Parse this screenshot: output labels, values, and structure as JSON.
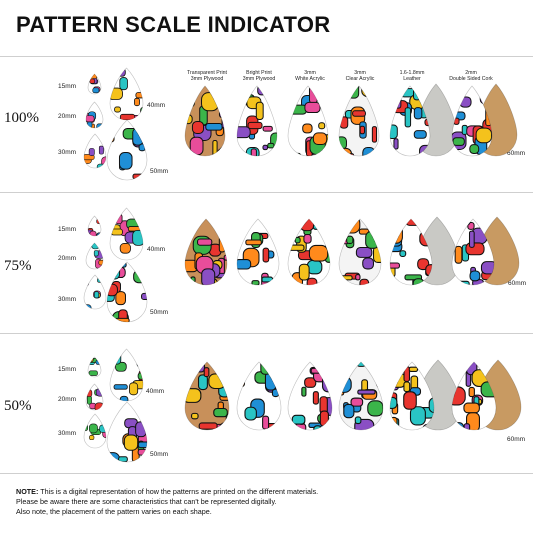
{
  "title": "PATTERN SCALE INDICATOR",
  "materials": [
    "Transparent Print\n3mm Plywood",
    "Bright Print\n3mm Plywood",
    "3mm\nWhite Acrylic",
    "3mm\nClear Acrylic",
    "1.6-1.8mm\nLeather",
    "2mm\nDouble Sided Cork"
  ],
  "sections": [
    {
      "scale": "100%"
    },
    {
      "scale": "75%"
    },
    {
      "scale": "50%"
    }
  ],
  "size_labels": {
    "s15": "15mm",
    "s20": "20mm",
    "s30": "30mm",
    "s40": "40mm",
    "s50": "50mm",
    "s60": "60mm"
  },
  "note": {
    "label": "NOTE:",
    "line1": " This is a digital representation of how the patterns are printed on the different materials.",
    "line2": "Please be aware there are some characteristics that can't be represented digitally.",
    "line3": "Also note, the placement of the pattern varies on each shape."
  },
  "colors": {
    "leather": "#c9c9c5",
    "cork": "#c89a62",
    "plywood": "#c8905a"
  }
}
